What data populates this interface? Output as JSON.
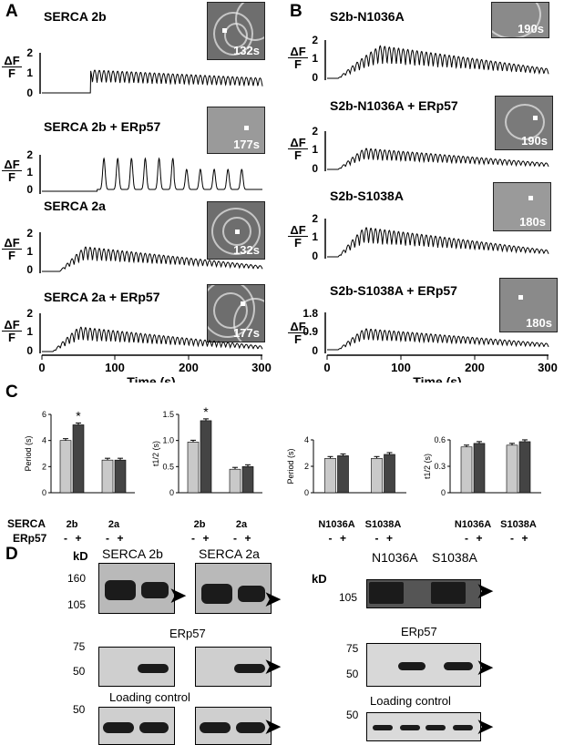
{
  "panel_letters": {
    "a": "A",
    "b": "B",
    "c": "C",
    "d": "D"
  },
  "delta_f": {
    "num": "ΔF",
    "den": "F"
  },
  "panel_A": {
    "traces": [
      {
        "title": "SERCA 2b",
        "inset_time": "132s",
        "yticks": [
          "2",
          "1",
          "0"
        ]
      },
      {
        "title": "SERCA 2b + ERp57",
        "inset_time": "177s",
        "yticks": [
          "2",
          "1",
          "0"
        ]
      },
      {
        "title": "SERCA 2a",
        "inset_time": "132s",
        "yticks": [
          "2",
          "1",
          "0"
        ]
      },
      {
        "title": "SERCA 2a + ERp57",
        "inset_time": "177s",
        "yticks": [
          "2",
          "1",
          "0"
        ]
      }
    ],
    "xticks": [
      "0",
      "100",
      "200",
      "300"
    ],
    "xlabel": "Time (s)"
  },
  "panel_B": {
    "traces": [
      {
        "title": "S2b-N1036A",
        "inset_time": "190s",
        "yticks": [
          "2",
          "1",
          "0"
        ]
      },
      {
        "title": "S2b-N1036A + ERp57",
        "inset_time": "190s",
        "yticks": [
          "2",
          "1",
          "0"
        ]
      },
      {
        "title": "S2b-S1038A",
        "inset_time": "180s",
        "yticks": [
          "2",
          "1",
          "0"
        ]
      },
      {
        "title": "S2b-S1038A + ERp57",
        "inset_time": "180s",
        "yticks": [
          "1.8",
          "0.9",
          "0"
        ]
      }
    ],
    "xticks": [
      "0",
      "100",
      "200",
      "300"
    ],
    "xlabel": "Time (s)"
  },
  "panel_C": {
    "row_labels": {
      "serca": "SERCA",
      "erp57": "ERp57"
    },
    "chart_data": [
      {
        "type": "bar",
        "ylabel": "Period (s)",
        "ylim": [
          0,
          6
        ],
        "yticks": [
          "6",
          "4",
          "2",
          "0"
        ],
        "categories": [
          "2b",
          "2a"
        ],
        "signs": [
          "-",
          "+",
          "-",
          "+"
        ],
        "series": [
          {
            "name": "-",
            "values": [
              4.0,
              2.5
            ]
          },
          {
            "name": "+",
            "values": [
              5.2,
              2.5
            ]
          }
        ],
        "annotation": "*"
      },
      {
        "type": "bar",
        "ylabel": "t1/2 (s)",
        "ylim": [
          0,
          1.5
        ],
        "yticks": [
          "1.5",
          "1.0",
          "0.5",
          "0"
        ],
        "categories": [
          "2b",
          "2a"
        ],
        "signs": [
          "-",
          "+",
          "-",
          "+"
        ],
        "series": [
          {
            "name": "-",
            "values": [
              0.97,
              0.45
            ]
          },
          {
            "name": "+",
            "values": [
              1.38,
              0.5
            ]
          }
        ],
        "annotation": "*"
      },
      {
        "type": "bar",
        "ylabel": "Period (s)",
        "ylim": [
          0,
          4
        ],
        "yticks": [
          "4",
          "2",
          "0"
        ],
        "categories": [
          "N1036A",
          "S1038A"
        ],
        "signs": [
          "-",
          "+",
          "-",
          "+"
        ],
        "series": [
          {
            "name": "-",
            "values": [
              2.6,
              2.6
            ]
          },
          {
            "name": "+",
            "values": [
              2.8,
              2.9
            ]
          }
        ]
      },
      {
        "type": "bar",
        "ylabel": "t1/2 (s)",
        "ylim": [
          0,
          0.6
        ],
        "yticks": [
          "0.6",
          "0.3",
          "0"
        ],
        "categories": [
          "N1036A",
          "S1038A"
        ],
        "signs": [
          "-",
          "+",
          "-",
          "+"
        ],
        "series": [
          {
            "name": "-",
            "values": [
              0.52,
              0.54
            ]
          },
          {
            "name": "+",
            "values": [
              0.56,
              0.58
            ]
          }
        ]
      }
    ]
  },
  "panel_D": {
    "kd": "kD",
    "left": {
      "titles": [
        "SERCA 2b",
        "SERCA 2a"
      ],
      "serca_kd": [
        "160",
        "105"
      ],
      "erp57_title": "ERp57",
      "erp57_kd": [
        "75",
        "50"
      ],
      "loading_title": "Loading control",
      "loading_kd": [
        "50"
      ]
    },
    "right": {
      "titles": [
        "N1036A",
        "S1038A"
      ],
      "serca_kd": [
        "105"
      ],
      "erp57_title": "ERp57",
      "erp57_kd": [
        "75",
        "50"
      ],
      "loading_title": "Loading control",
      "loading_kd": [
        "50"
      ]
    }
  }
}
